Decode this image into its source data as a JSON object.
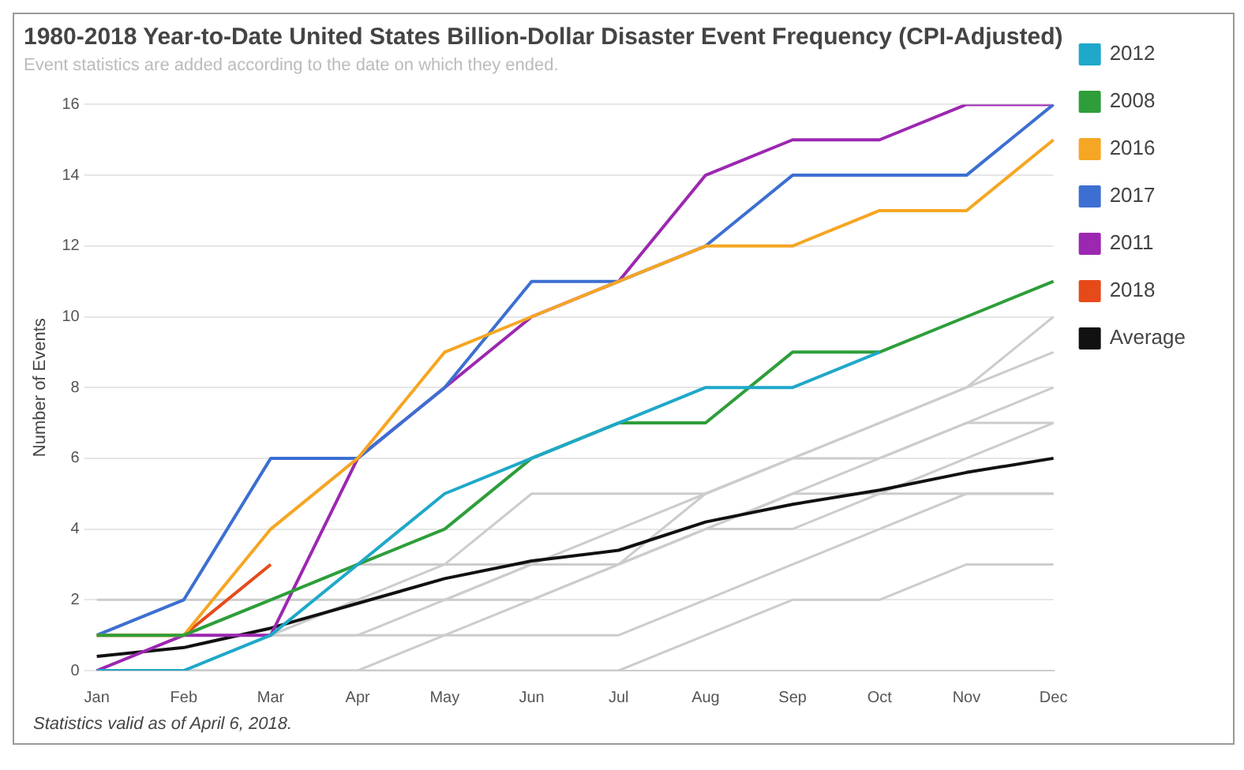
{
  "chart_data": {
    "type": "line",
    "title": "1980-2018 Year-to-Date United States Billion-Dollar Disaster Event Frequency (CPI-Adjusted)",
    "subtitle": "Event statistics are added according to the date on which they ended.",
    "ylabel": "Number of Events",
    "annotations": [
      "Statistics valid as of April 6, 2018."
    ],
    "categories": [
      "Jan",
      "Feb",
      "Mar",
      "Apr",
      "May",
      "Jun",
      "Jul",
      "Aug",
      "Sep",
      "Oct",
      "Nov",
      "Dec"
    ],
    "ylim": [
      0,
      16
    ],
    "yticks": [
      0,
      2,
      4,
      6,
      8,
      10,
      12,
      14,
      16
    ],
    "grid": "y",
    "legend": "right",
    "marker": "none",
    "line_style": "solid",
    "series": [
      {
        "color": "#cccccc",
        "values": [
          0,
          0,
          0,
          0,
          1,
          2,
          3,
          4,
          5,
          5,
          5,
          5
        ]
      },
      {
        "color": "#cccccc",
        "values": [
          1,
          1,
          1,
          1,
          1,
          1,
          1,
          2,
          3,
          4,
          5,
          5
        ]
      },
      {
        "color": "#cccccc",
        "values": [
          0,
          0,
          1,
          2,
          3,
          5,
          5,
          5,
          6,
          7,
          8,
          10
        ]
      },
      {
        "color": "#cccccc",
        "values": [
          0,
          1,
          2,
          2,
          2,
          3,
          3,
          4,
          5,
          6,
          7,
          8
        ]
      },
      {
        "color": "#cccccc",
        "values": [
          1,
          1,
          1,
          2,
          2,
          3,
          3,
          5,
          6,
          7,
          8,
          9
        ]
      },
      {
        "color": "#cccccc",
        "values": [
          1,
          1,
          1,
          1,
          2,
          2,
          3,
          4,
          4,
          5,
          6,
          7
        ]
      },
      {
        "color": "#cccccc",
        "values": [
          0,
          0,
          0,
          0,
          0,
          0,
          0,
          1,
          2,
          2,
          3,
          3
        ]
      },
      {
        "color": "#cccccc",
        "values": [
          2,
          2,
          2,
          3,
          3,
          3,
          4,
          5,
          6,
          6,
          7,
          7
        ]
      },
      {
        "name": "2012",
        "color": "#1fa8c9",
        "values": [
          0,
          0,
          1,
          3,
          5,
          6,
          7,
          8,
          8,
          9,
          null,
          null
        ]
      },
      {
        "name": "2008",
        "color": "#2e9e3a",
        "values": [
          1,
          1,
          2,
          3,
          4,
          6,
          7,
          7,
          9,
          9,
          10,
          11
        ]
      },
      {
        "name": "2016",
        "color": "#f5a623",
        "values": [
          1,
          1,
          4,
          6,
          9,
          10,
          11,
          12,
          12,
          13,
          13,
          15
        ]
      },
      {
        "name": "2017",
        "color": "#3c6fd1",
        "values": [
          1,
          2,
          6,
          6,
          8,
          11,
          11,
          12,
          14,
          14,
          14,
          16
        ]
      },
      {
        "name": "2011",
        "color": "#9c27b0",
        "values": [
          0,
          1,
          1,
          6,
          8,
          10,
          11,
          14,
          15,
          15,
          16,
          16
        ]
      },
      {
        "name": "2018",
        "color": "#e64a19",
        "values": [
          1,
          1,
          3,
          null,
          null,
          null,
          null,
          null,
          null,
          null,
          null,
          null
        ]
      },
      {
        "name": "Average",
        "color": "#111111",
        "values": [
          0.4,
          0.65,
          1.2,
          1.9,
          2.6,
          3.1,
          3.4,
          4.2,
          4.7,
          5.1,
          5.6,
          6
        ]
      }
    ]
  }
}
